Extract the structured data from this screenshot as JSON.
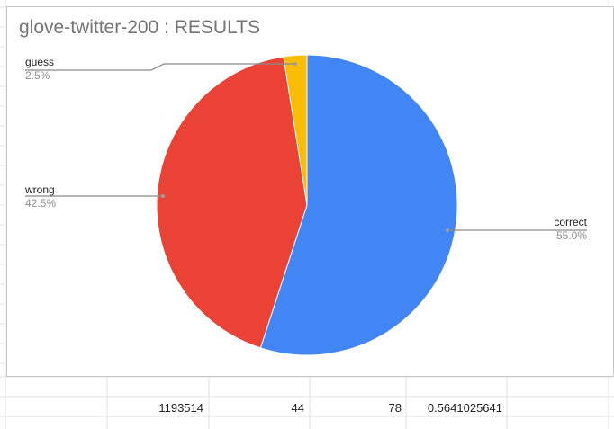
{
  "chart_data": {
    "type": "pie",
    "title": "glove-twitter-200 : RESULTS",
    "slices": [
      {
        "label": "correct",
        "value": 55.0,
        "percent_label": "55.0%",
        "color": "#4285f4"
      },
      {
        "label": "wrong",
        "value": 42.5,
        "percent_label": "42.5%",
        "color": "#ea4335"
      },
      {
        "label": "guess",
        "value": 2.5,
        "percent_label": "2.5%",
        "color": "#fbbc04"
      }
    ],
    "legend": "labels with leader lines"
  },
  "sheet": {
    "row_values": [
      "1193514",
      "44",
      "78",
      "0.5641025641"
    ]
  }
}
